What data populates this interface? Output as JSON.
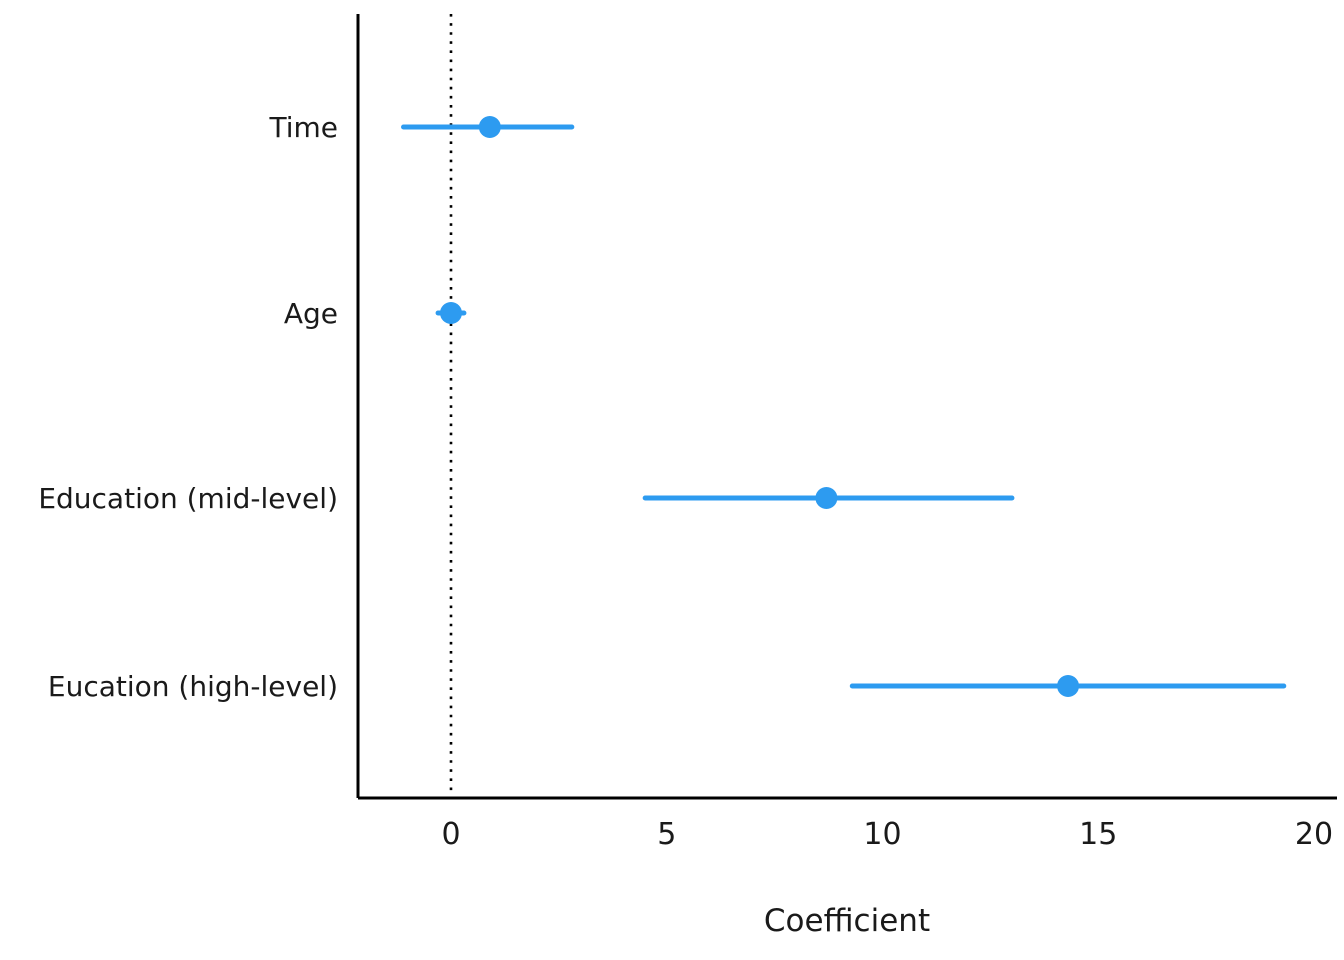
{
  "chart_data": {
    "type": "scatter",
    "subtype": "coefficient-plot",
    "title": "",
    "xlabel": "Coefficient",
    "ylabel": "",
    "x_ticks": [
      0,
      5,
      10,
      15,
      20
    ],
    "xlim": [
      -2.2,
      20.7
    ],
    "grid": false,
    "legend": false,
    "reference_line_x": 0,
    "point_color": "#2D9BF0",
    "axis_color": "#000000",
    "text_color": "#1a1a1a",
    "categories": [
      "Time",
      "Age",
      "Education (mid-level)",
      "Eucation (high-level)"
    ],
    "series": [
      {
        "name": "coefficient-estimates",
        "points": [
          {
            "label": "Time",
            "estimate": 0.9,
            "ci_low": -1.1,
            "ci_high": 2.8
          },
          {
            "label": "Age",
            "estimate": 0.0,
            "ci_low": -0.3,
            "ci_high": 0.3
          },
          {
            "label": "Education (mid-level)",
            "estimate": 8.7,
            "ci_low": 4.5,
            "ci_high": 13.0
          },
          {
            "label": "Eucation (high-level)",
            "estimate": 14.3,
            "ci_low": 9.3,
            "ci_high": 19.3
          }
        ]
      }
    ]
  }
}
